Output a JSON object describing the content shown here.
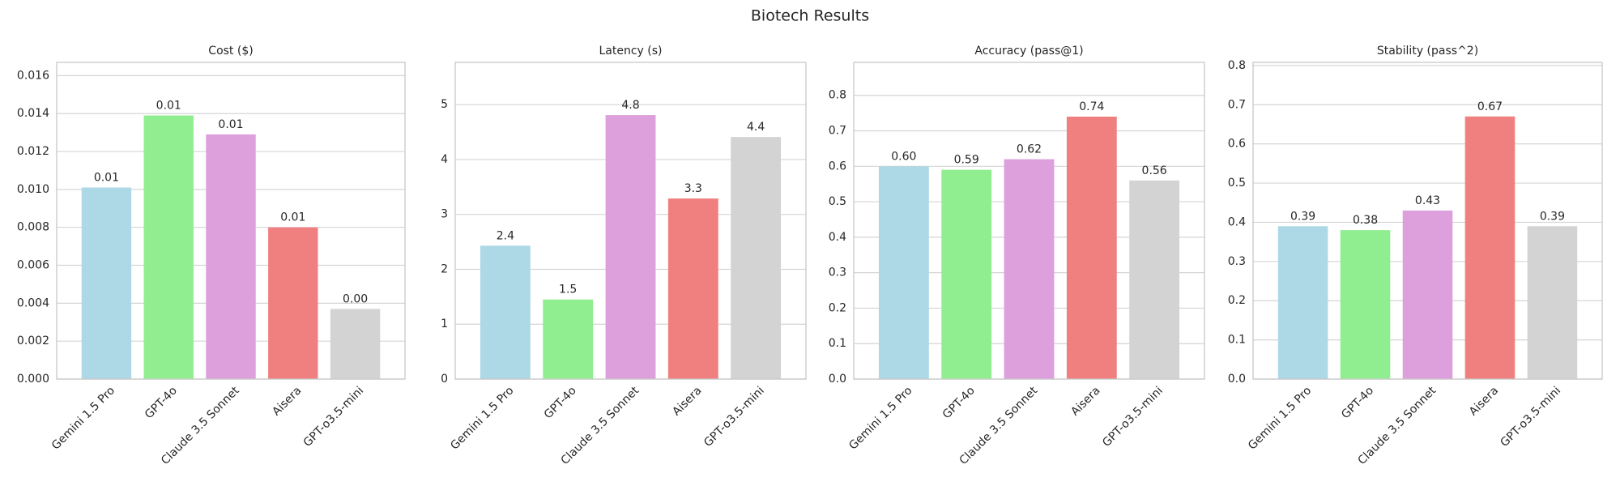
{
  "title": "Biotech Results",
  "chart_data": [
    {
      "type": "bar",
      "title": "Cost ($)",
      "categories": [
        "Gemini 1.5 Pro",
        "GPT-4o",
        "Claude 3.5 Sonnet",
        "Aisera",
        "GPT-o3.5-mini"
      ],
      "values": [
        0.0101,
        0.0139,
        0.0129,
        0.008,
        0.0037
      ],
      "value_labels": [
        "0.01",
        "0.01",
        "0.01",
        "0.01",
        "0.00"
      ],
      "colors": [
        "#add8e6",
        "#90ee90",
        "#dda0dd",
        "#f08080",
        "#d3d3d3"
      ],
      "ylim": [
        0,
        0.0167
      ],
      "yticks": [
        {
          "value": 0,
          "label": "0.000"
        },
        {
          "value": 0.002,
          "label": "0.002"
        },
        {
          "value": 0.004,
          "label": "0.004"
        },
        {
          "value": 0.006,
          "label": "0.006"
        },
        {
          "value": 0.008,
          "label": "0.008"
        },
        {
          "value": 0.01,
          "label": "0.010"
        },
        {
          "value": 0.012,
          "label": "0.012"
        },
        {
          "value": 0.014,
          "label": "0.014"
        },
        {
          "value": 0.016,
          "label": "0.016"
        }
      ],
      "grid": true
    },
    {
      "type": "bar",
      "title": "Latency (s)",
      "categories": [
        "Gemini 1.5 Pro",
        "GPT-4o",
        "Claude 3.5 Sonnet",
        "Aisera",
        "GPT-o3.5-mini"
      ],
      "values": [
        2.43,
        1.45,
        4.81,
        3.29,
        4.41
      ],
      "value_labels": [
        "2.4",
        "1.5",
        "4.8",
        "3.3",
        "4.4"
      ],
      "colors": [
        "#add8e6",
        "#90ee90",
        "#dda0dd",
        "#f08080",
        "#d3d3d3"
      ],
      "ylim": [
        0,
        5.77
      ],
      "yticks": [
        0,
        1,
        2,
        3,
        4,
        5
      ],
      "grid": true
    },
    {
      "type": "bar",
      "title": "Accuracy (pass@1)",
      "categories": [
        "Gemini 1.5 Pro",
        "GPT-4o",
        "Claude 3.5 Sonnet",
        "Aisera",
        "GPT-o3.5-mini"
      ],
      "values": [
        0.6,
        0.59,
        0.62,
        0.74,
        0.56
      ],
      "value_labels": [
        "0.60",
        "0.59",
        "0.62",
        "0.74",
        "0.56"
      ],
      "colors": [
        "#add8e6",
        "#90ee90",
        "#dda0dd",
        "#f08080",
        "#d3d3d3"
      ],
      "ylim": [
        0,
        0.893
      ],
      "yticks": [
        {
          "value": 0,
          "label": "0.0"
        },
        0.1,
        0.2,
        0.3,
        0.4,
        0.5,
        0.6,
        0.7,
        0.8
      ],
      "grid": true
    },
    {
      "type": "bar",
      "title": "Stability (pass^2)",
      "categories": [
        "Gemini 1.5 Pro",
        "GPT-4o",
        "Claude 3.5 Sonnet",
        "Aisera",
        "GPT-o3.5-mini"
      ],
      "values": [
        0.39,
        0.38,
        0.43,
        0.67,
        0.39
      ],
      "colors": [
        "#add8e6",
        "#90ee90",
        "#dda0dd",
        "#f08080",
        "#d3d3d3"
      ],
      "ylim": [
        0,
        0.808
      ],
      "yticks": [
        {
          "value": 0,
          "label": "0.0"
        },
        0.1,
        0.2,
        0.3,
        0.4,
        0.5,
        0.6,
        0.7,
        0.8
      ],
      "grid": true
    }
  ]
}
